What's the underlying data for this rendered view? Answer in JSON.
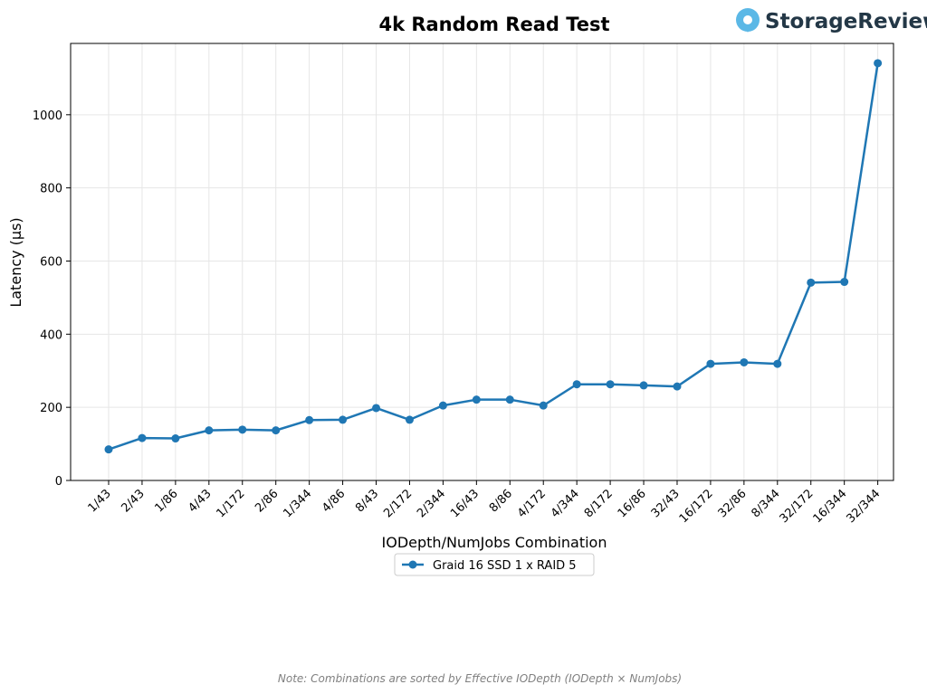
{
  "brand": {
    "name": "StorageReview",
    "logo_color": "#5bb8e6",
    "text_color": "#233746"
  },
  "note": "Note: Combinations are sorted by Effective IODepth (IODepth × NumJobs)",
  "chart_data": {
    "type": "line",
    "title": "4k Random Read Test",
    "xlabel": "IODepth/NumJobs Combination",
    "ylabel": "Latency (µs)",
    "ylim": [
      0,
      1195
    ],
    "yticks": [
      0,
      200,
      400,
      600,
      800,
      1000
    ],
    "grid": true,
    "legend_position": "below",
    "categories": [
      "1/43",
      "2/43",
      "1/86",
      "4/43",
      "1/172",
      "2/86",
      "1/344",
      "4/86",
      "8/43",
      "2/172",
      "2/344",
      "16/43",
      "8/86",
      "4/172",
      "4/344",
      "8/172",
      "16/86",
      "32/43",
      "16/172",
      "32/86",
      "8/344",
      "32/172",
      "16/344",
      "32/344"
    ],
    "series": [
      {
        "name": "Graid 16 SSD 1 x RAID 5",
        "color": "#1f77b4",
        "values": [
          85,
          116,
          115,
          137,
          139,
          137,
          165,
          166,
          198,
          166,
          205,
          221,
          221,
          205,
          263,
          263,
          260,
          257,
          319,
          323,
          319,
          541,
          543,
          1141
        ]
      }
    ]
  }
}
